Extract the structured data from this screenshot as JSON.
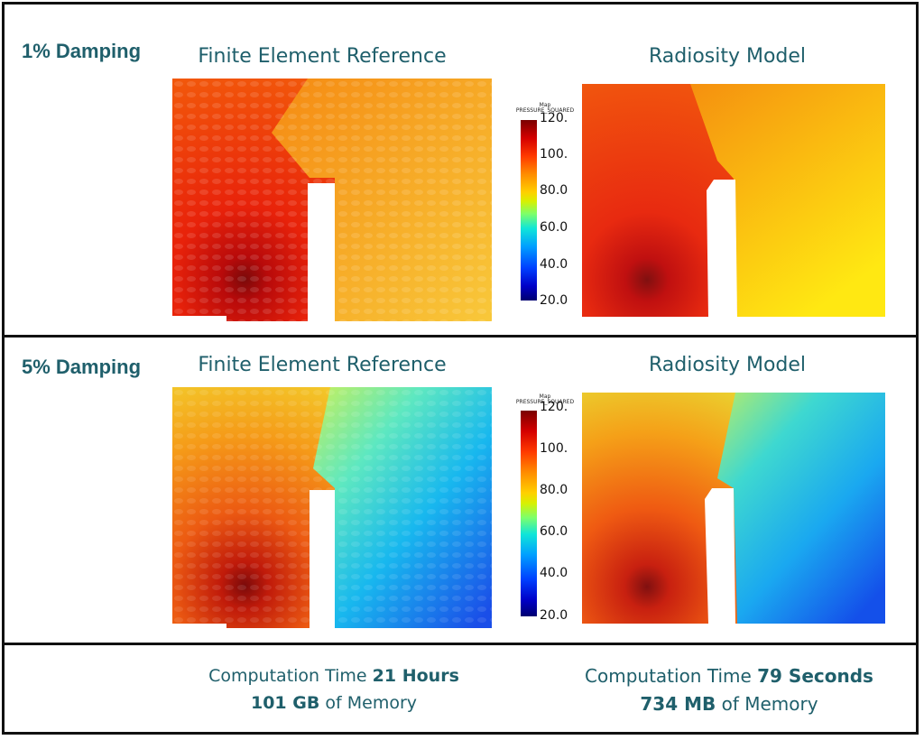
{
  "rows": [
    {
      "damping_label": "1% Damping",
      "fe_title": "Finite Element Reference",
      "rad_title": "Radiosity Model",
      "colorbar_title": "Map",
      "colorbar_subtitle": "PRESSURE_SQUARED",
      "ticks": [
        "120.",
        "100.",
        "80.0",
        "60.0",
        "40.0",
        "20.0"
      ]
    },
    {
      "damping_label": "5% Damping",
      "fe_title": "Finite Element Reference",
      "rad_title": "Radiosity Model",
      "colorbar_title": "Map",
      "colorbar_subtitle": "PRESSURE_SQUARED",
      "ticks": [
        "120.",
        "100.",
        "80.0",
        "60.0",
        "40.0",
        "20.0"
      ]
    }
  ],
  "footer": {
    "fe_time_prefix": "Computation Time",
    "fe_time_value": "21 Hours",
    "fe_mem_value": "101 GB",
    "fe_mem_suffix": "of Memory",
    "rad_time_prefix": "Computation Time",
    "rad_time_value": "79 Seconds",
    "rad_mem_value": "734 MB",
    "rad_mem_suffix": "of Memory"
  }
}
